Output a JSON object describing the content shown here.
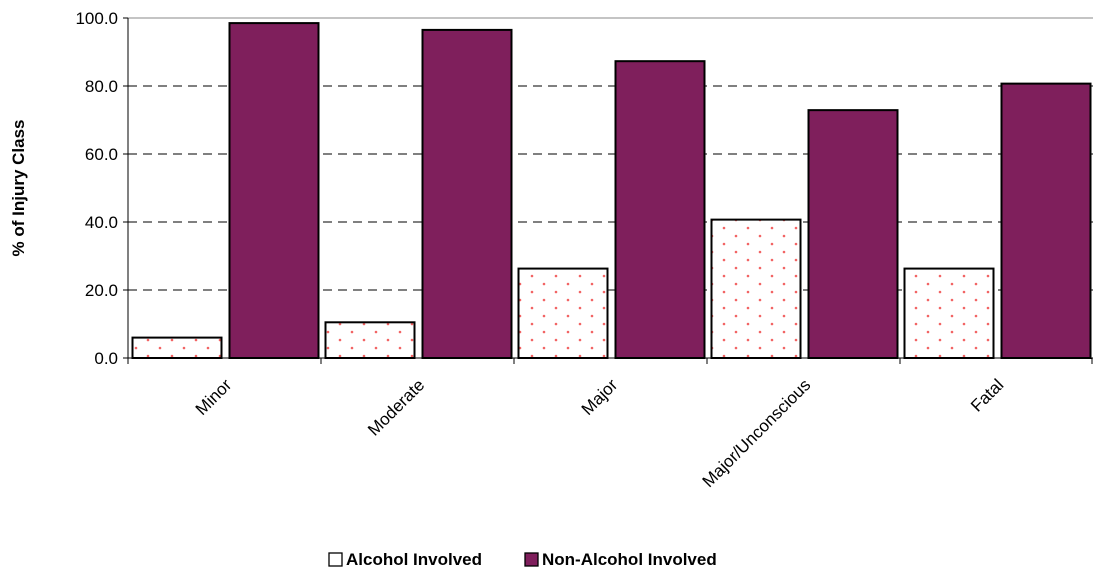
{
  "chart_data": {
    "type": "bar",
    "categories": [
      "Minor",
      "Moderate",
      "Major",
      "Major/Unconscious",
      "Fatal"
    ],
    "series": [
      {
        "name": "Alcohol Involved",
        "values": [
          6.0,
          10.5,
          26.3,
          40.7,
          26.3
        ],
        "color": "#ffffff",
        "pattern": "red-dots"
      },
      {
        "name": "Non-Alcohol Involved",
        "values": [
          98.5,
          96.5,
          87.3,
          72.9,
          80.7
        ],
        "color": "#7f1f5c"
      }
    ],
    "ylabel": "% of Injury Class",
    "xlabel": "",
    "ylim": [
      0,
      100
    ],
    "yticks": [
      "0.0",
      "20.0",
      "40.0",
      "60.0",
      "80.0",
      "100.0"
    ],
    "grid": "dashed horizontal",
    "legend": "bottom-center"
  }
}
